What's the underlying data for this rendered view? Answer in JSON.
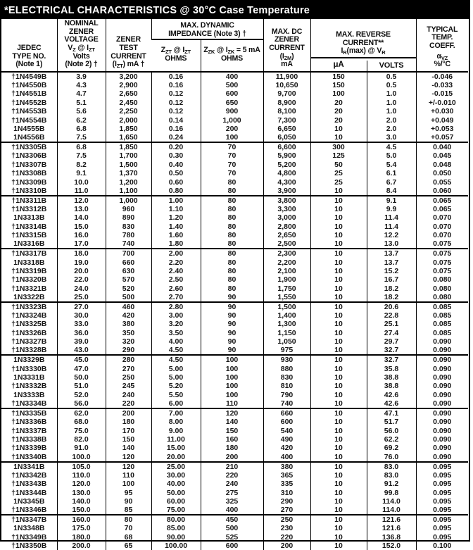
{
  "title": "*ELECTRICAL CHARACTERISTICS @ 30°C Case Temperature",
  "colors": {
    "title_bg": "#000000",
    "title_fg": "#ffffff",
    "border": "#000000",
    "text": "#151515",
    "page_bg": "#ffffff"
  },
  "table": {
    "header": {
      "jedec": "JEDEC<br>TYPE NO.<br>(Note 1)",
      "nominal_voltage": "NOMINAL<br>ZENER<br>VOLTAGE<br>V<sub>Z</sub> @ I<sub>ZT</sub><br>Volts<br>(Note 2) †",
      "test_current": "ZENER<br>TEST<br>CURRENT<br>(I<sub>ZT</sub>) mA †",
      "dynamic_impedance": "MAX. DYNAMIC<br>IMPEDANCE (Note 3) †",
      "zzt": "Z<sub>ZT</sub> @ I<sub>ZT</sub><br>OHMS",
      "zzk": "Z<sub>ZK</sub> @ I<sub>ZK</sub> = 5 mA<br>OHMS",
      "dc_current": "MAX. DC<br>ZENER<br>CURRENT<br>(I<sub>ZM</sub>)<br>mA",
      "reverse_current": "MAX. REVERSE<br>CURRENT**<br>I<sub>R</sub>(max) @ V<sub>R</sub>",
      "ua": "μA",
      "volts": "VOLTS",
      "temp_coeff_label": "TYPICAL<br>TEMP.<br>COEFF.",
      "temp_coeff_units": "α<sub>VZ</sub><br>%/°C"
    },
    "cell_names": [
      "jedec-type-no",
      "nominal-zener-voltage",
      "zener-test-current",
      "zzt-impedance-ohms",
      "zzk-impedance-ohms",
      "max-dc-zener-current",
      "reverse-current-ua",
      "reverse-voltage-volts",
      "temp-coefficient"
    ],
    "groups": [
      {
        "rows": [
          [
            "†1N4549B",
            "3.9",
            "3,200",
            "0.16",
            "400",
            "11,900",
            "150",
            "0.5",
            "-0.046"
          ],
          [
            "†1N4550B",
            "4.3",
            "2,900",
            "0.16",
            "500",
            "10,650",
            "150",
            "0.5",
            "-0.033"
          ],
          [
            "†1N4551B",
            "4.7",
            "2,650",
            "0.12",
            "600",
            "9,700",
            "100",
            "1.0",
            "-0.015"
          ],
          [
            "†1N4552B",
            "5.1",
            "2,450",
            "0.12",
            "650",
            "8,900",
            "20",
            "1.0",
            "+/-0.010"
          ],
          [
            "†1N4553B",
            "5.6",
            "2,250",
            "0.12",
            "900",
            "8,100",
            "20",
            "1.0",
            "+0.030"
          ],
          [
            "†1N4554B",
            "6.2",
            "2,000",
            "0.14",
            "1,000",
            "7,300",
            "20",
            "2.0",
            "+0.049"
          ],
          [
            "1N4555B",
            "6.8",
            "1,850",
            "0.16",
            "200",
            "6,650",
            "10",
            "2.0",
            "+0.053"
          ],
          [
            "1N4556B",
            "7.5",
            "1,650",
            "0.24",
            "100",
            "6,050",
            "10",
            "3.0",
            "+0.057"
          ]
        ]
      },
      {
        "rows": [
          [
            "†1N3305B",
            "6.8",
            "1,850",
            "0.20",
            "70",
            "6,600",
            "300",
            "4.5",
            "0.040"
          ],
          [
            "†1N3306B",
            "7.5",
            "1,700",
            "0.30",
            "70",
            "5,900",
            "125",
            "5.0",
            "0.045"
          ],
          [
            "†1N3307B",
            "8.2",
            "1,500",
            "0.40",
            "70",
            "5,200",
            "50",
            "5.4",
            "0.048"
          ],
          [
            "†1N3308B",
            "9.1",
            "1,370",
            "0.50",
            "70",
            "4,800",
            "25",
            "6.1",
            "0.050"
          ],
          [
            "†1N3309B",
            "10.0",
            "1,200",
            "0.60",
            "80",
            "4,300",
            "25",
            "6.7",
            "0.055"
          ],
          [
            "†1N3310B",
            "11.0",
            "1,100",
            "0.80",
            "80",
            "3,900",
            "10",
            "8.4",
            "0.060"
          ]
        ]
      },
      {
        "rows": [
          [
            "†1N3311B",
            "12.0",
            "1,000",
            "1.00",
            "80",
            "3,800",
            "10",
            "9.1",
            "0.065"
          ],
          [
            "†1N3312B",
            "13.0",
            "960",
            "1.10",
            "80",
            "3,300",
            "10",
            "9.9",
            "0.065"
          ],
          [
            "1N3313B",
            "14.0",
            "890",
            "1.20",
            "80",
            "3,000",
            "10",
            "11.4",
            "0.070"
          ],
          [
            "†1N3314B",
            "15.0",
            "830",
            "1.40",
            "80",
            "2,800",
            "10",
            "11.4",
            "0.070"
          ],
          [
            "†1N3315B",
            "16.0",
            "780",
            "1.60",
            "80",
            "2,650",
            "10",
            "12.2",
            "0.070"
          ],
          [
            "1N3316B",
            "17.0",
            "740",
            "1.80",
            "80",
            "2,500",
            "10",
            "13.0",
            "0.075"
          ]
        ]
      },
      {
        "rows": [
          [
            "†1N3317B",
            "18.0",
            "700",
            "2.00",
            "80",
            "2,300",
            "10",
            "13.7",
            "0.075"
          ],
          [
            "1N3318B",
            "19.0",
            "660",
            "2.20",
            "80",
            "2,200",
            "10",
            "13.7",
            "0.075"
          ],
          [
            "†1N3319B",
            "20.0",
            "630",
            "2.40",
            "80",
            "2,100",
            "10",
            "15.2",
            "0.075"
          ],
          [
            "†1N3320B",
            "22.0",
            "570",
            "2.50",
            "80",
            "1,900",
            "10",
            "16.7",
            "0.080"
          ],
          [
            "†1N3321B",
            "24.0",
            "520",
            "2.60",
            "80",
            "1,750",
            "10",
            "18.2",
            "0.080"
          ],
          [
            "1N3322B",
            "25.0",
            "500",
            "2.70",
            "90",
            "1,550",
            "10",
            "18.2",
            "0.080"
          ]
        ]
      },
      {
        "rows": [
          [
            "†1N3323B",
            "27.0",
            "460",
            "2.80",
            "90",
            "1,500",
            "10",
            "20.6",
            "0.085"
          ],
          [
            "†1N3324B",
            "30.0",
            "420",
            "3.00",
            "90",
            "1,400",
            "10",
            "22.8",
            "0.085"
          ],
          [
            "†1N3325B",
            "33.0",
            "380",
            "3.20",
            "90",
            "1,300",
            "10",
            "25.1",
            "0.085"
          ],
          [
            "†1N3326B",
            "36.0",
            "350",
            "3.50",
            "90",
            "1,150",
            "10",
            "27.4",
            "0.085"
          ],
          [
            "†1N3327B",
            "39.0",
            "320",
            "4.00",
            "90",
            "1,050",
            "10",
            "29.7",
            "0.090"
          ],
          [
            "†1N3328B",
            "43.0",
            "290",
            "4.50",
            "90",
            "975",
            "10",
            "32.7",
            "0.090"
          ]
        ]
      },
      {
        "rows": [
          [
            "1N3329B",
            "45.0",
            "280",
            "4.50",
            "100",
            "930",
            "10",
            "32.7",
            "0.090"
          ],
          [
            "†1N3330B",
            "47.0",
            "270",
            "5.00",
            "100",
            "880",
            "10",
            "35.8",
            "0.090"
          ],
          [
            "1N3331B",
            "50.0",
            "250",
            "5.00",
            "100",
            "830",
            "10",
            "38.8",
            "0.090"
          ],
          [
            "†1N3332B",
            "51.0",
            "245",
            "5.20",
            "100",
            "810",
            "10",
            "38.8",
            "0.090"
          ],
          [
            "1N3333B",
            "52.0",
            "240",
            "5.50",
            "100",
            "790",
            "10",
            "42.6",
            "0.090"
          ],
          [
            "†1N3334B",
            "56.0",
            "220",
            "6.00",
            "110",
            "740",
            "10",
            "42.6",
            "0.090"
          ]
        ]
      },
      {
        "rows": [
          [
            "†1N3335B",
            "62.0",
            "200",
            "7.00",
            "120",
            "660",
            "10",
            "47.1",
            "0.090"
          ],
          [
            "†1N3336B",
            "68.0",
            "180",
            "8.00",
            "140",
            "600",
            "10",
            "51.7",
            "0.090"
          ],
          [
            "†1N3337B",
            "75.0",
            "170",
            "9.00",
            "150",
            "540",
            "10",
            "56.0",
            "0.090"
          ],
          [
            "†1N3338B",
            "82.0",
            "150",
            "11.00",
            "160",
            "490",
            "10",
            "62.2",
            "0.090"
          ],
          [
            "†1N3339B",
            "91.0",
            "140",
            "15.00",
            "180",
            "420",
            "10",
            "69.2",
            "0.090"
          ],
          [
            "†1N3340B",
            "100.0",
            "120",
            "20.00",
            "200",
            "400",
            "10",
            "76.0",
            "0.090"
          ]
        ]
      },
      {
        "rows": [
          [
            "1N3341B",
            "105.0",
            "120",
            "25.00",
            "210",
            "380",
            "10",
            "83.0",
            "0.095"
          ],
          [
            "†1N3342B",
            "110.0",
            "110",
            "30.00",
            "220",
            "365",
            "10",
            "83.0",
            "0.095"
          ],
          [
            "†1N3343B",
            "120.0",
            "100",
            "40.00",
            "240",
            "335",
            "10",
            "91.2",
            "0.095"
          ],
          [
            "†1N3344B",
            "130.0",
            "95",
            "50.00",
            "275",
            "310",
            "10",
            "99.8",
            "0.095"
          ],
          [
            "1N3345B",
            "140.0",
            "90",
            "60.00",
            "325",
            "290",
            "10",
            "114.0",
            "0.095"
          ],
          [
            "†1N3346B",
            "150.0",
            "85",
            "75.00",
            "400",
            "270",
            "10",
            "114.0",
            "0.095"
          ]
        ]
      },
      {
        "rows": [
          [
            "†1N3347B",
            "160.0",
            "80",
            "80.00",
            "450",
            "250",
            "10",
            "121.6",
            "0.095"
          ],
          [
            "1N3348B",
            "175.0",
            "70",
            "85.00",
            "500",
            "230",
            "10",
            "121.6",
            "0.095"
          ],
          [
            "†1N3349B",
            "180.0",
            "68",
            "90.00",
            "525",
            "220",
            "10",
            "136.8",
            "0.095"
          ],
          [
            "†1N3350B",
            "200.0",
            "65",
            "100.00",
            "600",
            "200",
            "10",
            "152.0",
            "0.100"
          ]
        ]
      }
    ]
  }
}
